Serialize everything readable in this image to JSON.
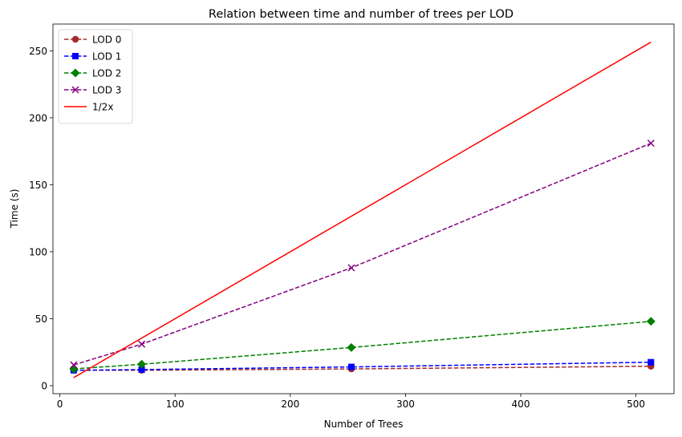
{
  "chart_data": {
    "type": "line",
    "title": "Relation between time and number of trees per LOD",
    "xlabel": "Number of Trees",
    "ylabel": "Time (s)",
    "xlim": [
      -6,
      533
    ],
    "ylim": [
      -6,
      270
    ],
    "xticks": [
      0,
      100,
      200,
      300,
      400,
      500
    ],
    "yticks": [
      0,
      50,
      100,
      150,
      200,
      250
    ],
    "legend_position": "top-left",
    "grid": false,
    "series": [
      {
        "name": "LOD 0",
        "color": "#a52a2a",
        "style": "dashed",
        "marker": "circle",
        "x": [
          12,
          71,
          253,
          513
        ],
        "y": [
          11.5,
          11.5,
          12.5,
          14.5
        ]
      },
      {
        "name": "LOD 1",
        "color": "#0000ff",
        "style": "dashed",
        "marker": "square",
        "x": [
          12,
          71,
          253,
          513
        ],
        "y": [
          11.5,
          12,
          14,
          17.5
        ]
      },
      {
        "name": "LOD 2",
        "color": "#008000",
        "style": "dashed",
        "marker": "diamond",
        "x": [
          12,
          71,
          253,
          513
        ],
        "y": [
          12.5,
          16,
          28.5,
          48
        ]
      },
      {
        "name": "LOD 3",
        "color": "#800080",
        "style": "dashed",
        "marker": "x",
        "x": [
          12,
          71,
          253,
          513
        ],
        "y": [
          15.5,
          31,
          88,
          181
        ]
      },
      {
        "name": "1/2x",
        "color": "#ff0000",
        "style": "solid",
        "marker": "none",
        "x": [
          12,
          513
        ],
        "y": [
          6,
          256.5
        ]
      }
    ]
  }
}
